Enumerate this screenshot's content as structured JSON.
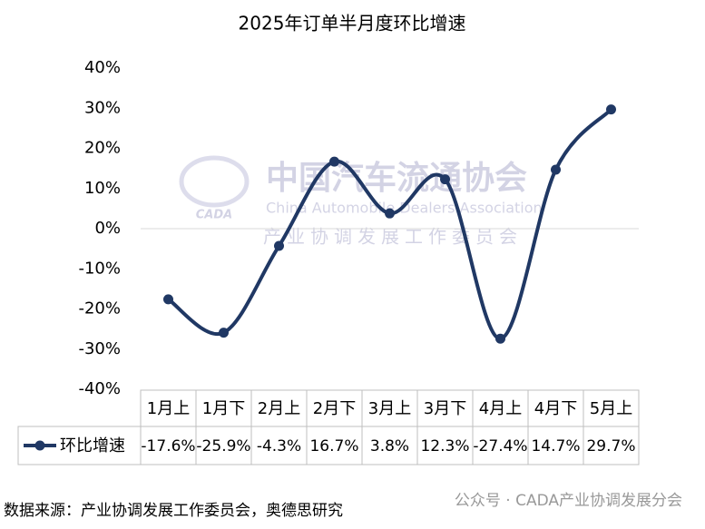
{
  "chart_data": {
    "type": "line",
    "title": "2025年订单半月度环比增速",
    "categories": [
      "1月上",
      "1月下",
      "2月上",
      "2月下",
      "3月上",
      "3月下",
      "4月上",
      "4月下",
      "5月上"
    ],
    "series": [
      {
        "name": "环比增速",
        "color": "#203864",
        "values": [
          -17.6,
          -25.9,
          -4.3,
          16.7,
          3.8,
          12.3,
          -27.4,
          14.7,
          29.7
        ],
        "value_labels": [
          "-17.6%",
          "-25.9%",
          "-4.3%",
          "16.7%",
          "3.8%",
          "12.3%",
          "-27.4%",
          "14.7%",
          "29.7%"
        ]
      }
    ],
    "ylim": [
      -40,
      40
    ],
    "yticks": [
      {
        "value": 40,
        "label": "40%"
      },
      {
        "value": 30,
        "label": "30%"
      },
      {
        "value": 20,
        "label": "20%"
      },
      {
        "value": 10,
        "label": "10%"
      },
      {
        "value": 0,
        "label": "0%"
      },
      {
        "value": -10,
        "label": "-10%"
      },
      {
        "value": -20,
        "label": "-20%"
      },
      {
        "value": -30,
        "label": "-30%"
      },
      {
        "value": -40,
        "label": "-40%"
      }
    ],
    "grid": false,
    "source": "数据来源：产业协调发展工作委员会，奥德思研究",
    "watermark": "公众号 · CADA产业协调发展分会",
    "logo_texts": [
      "中国汽车流通协会",
      "China Automobile Dealers Association",
      "产业协调发展工作委员会",
      "CADA"
    ]
  }
}
